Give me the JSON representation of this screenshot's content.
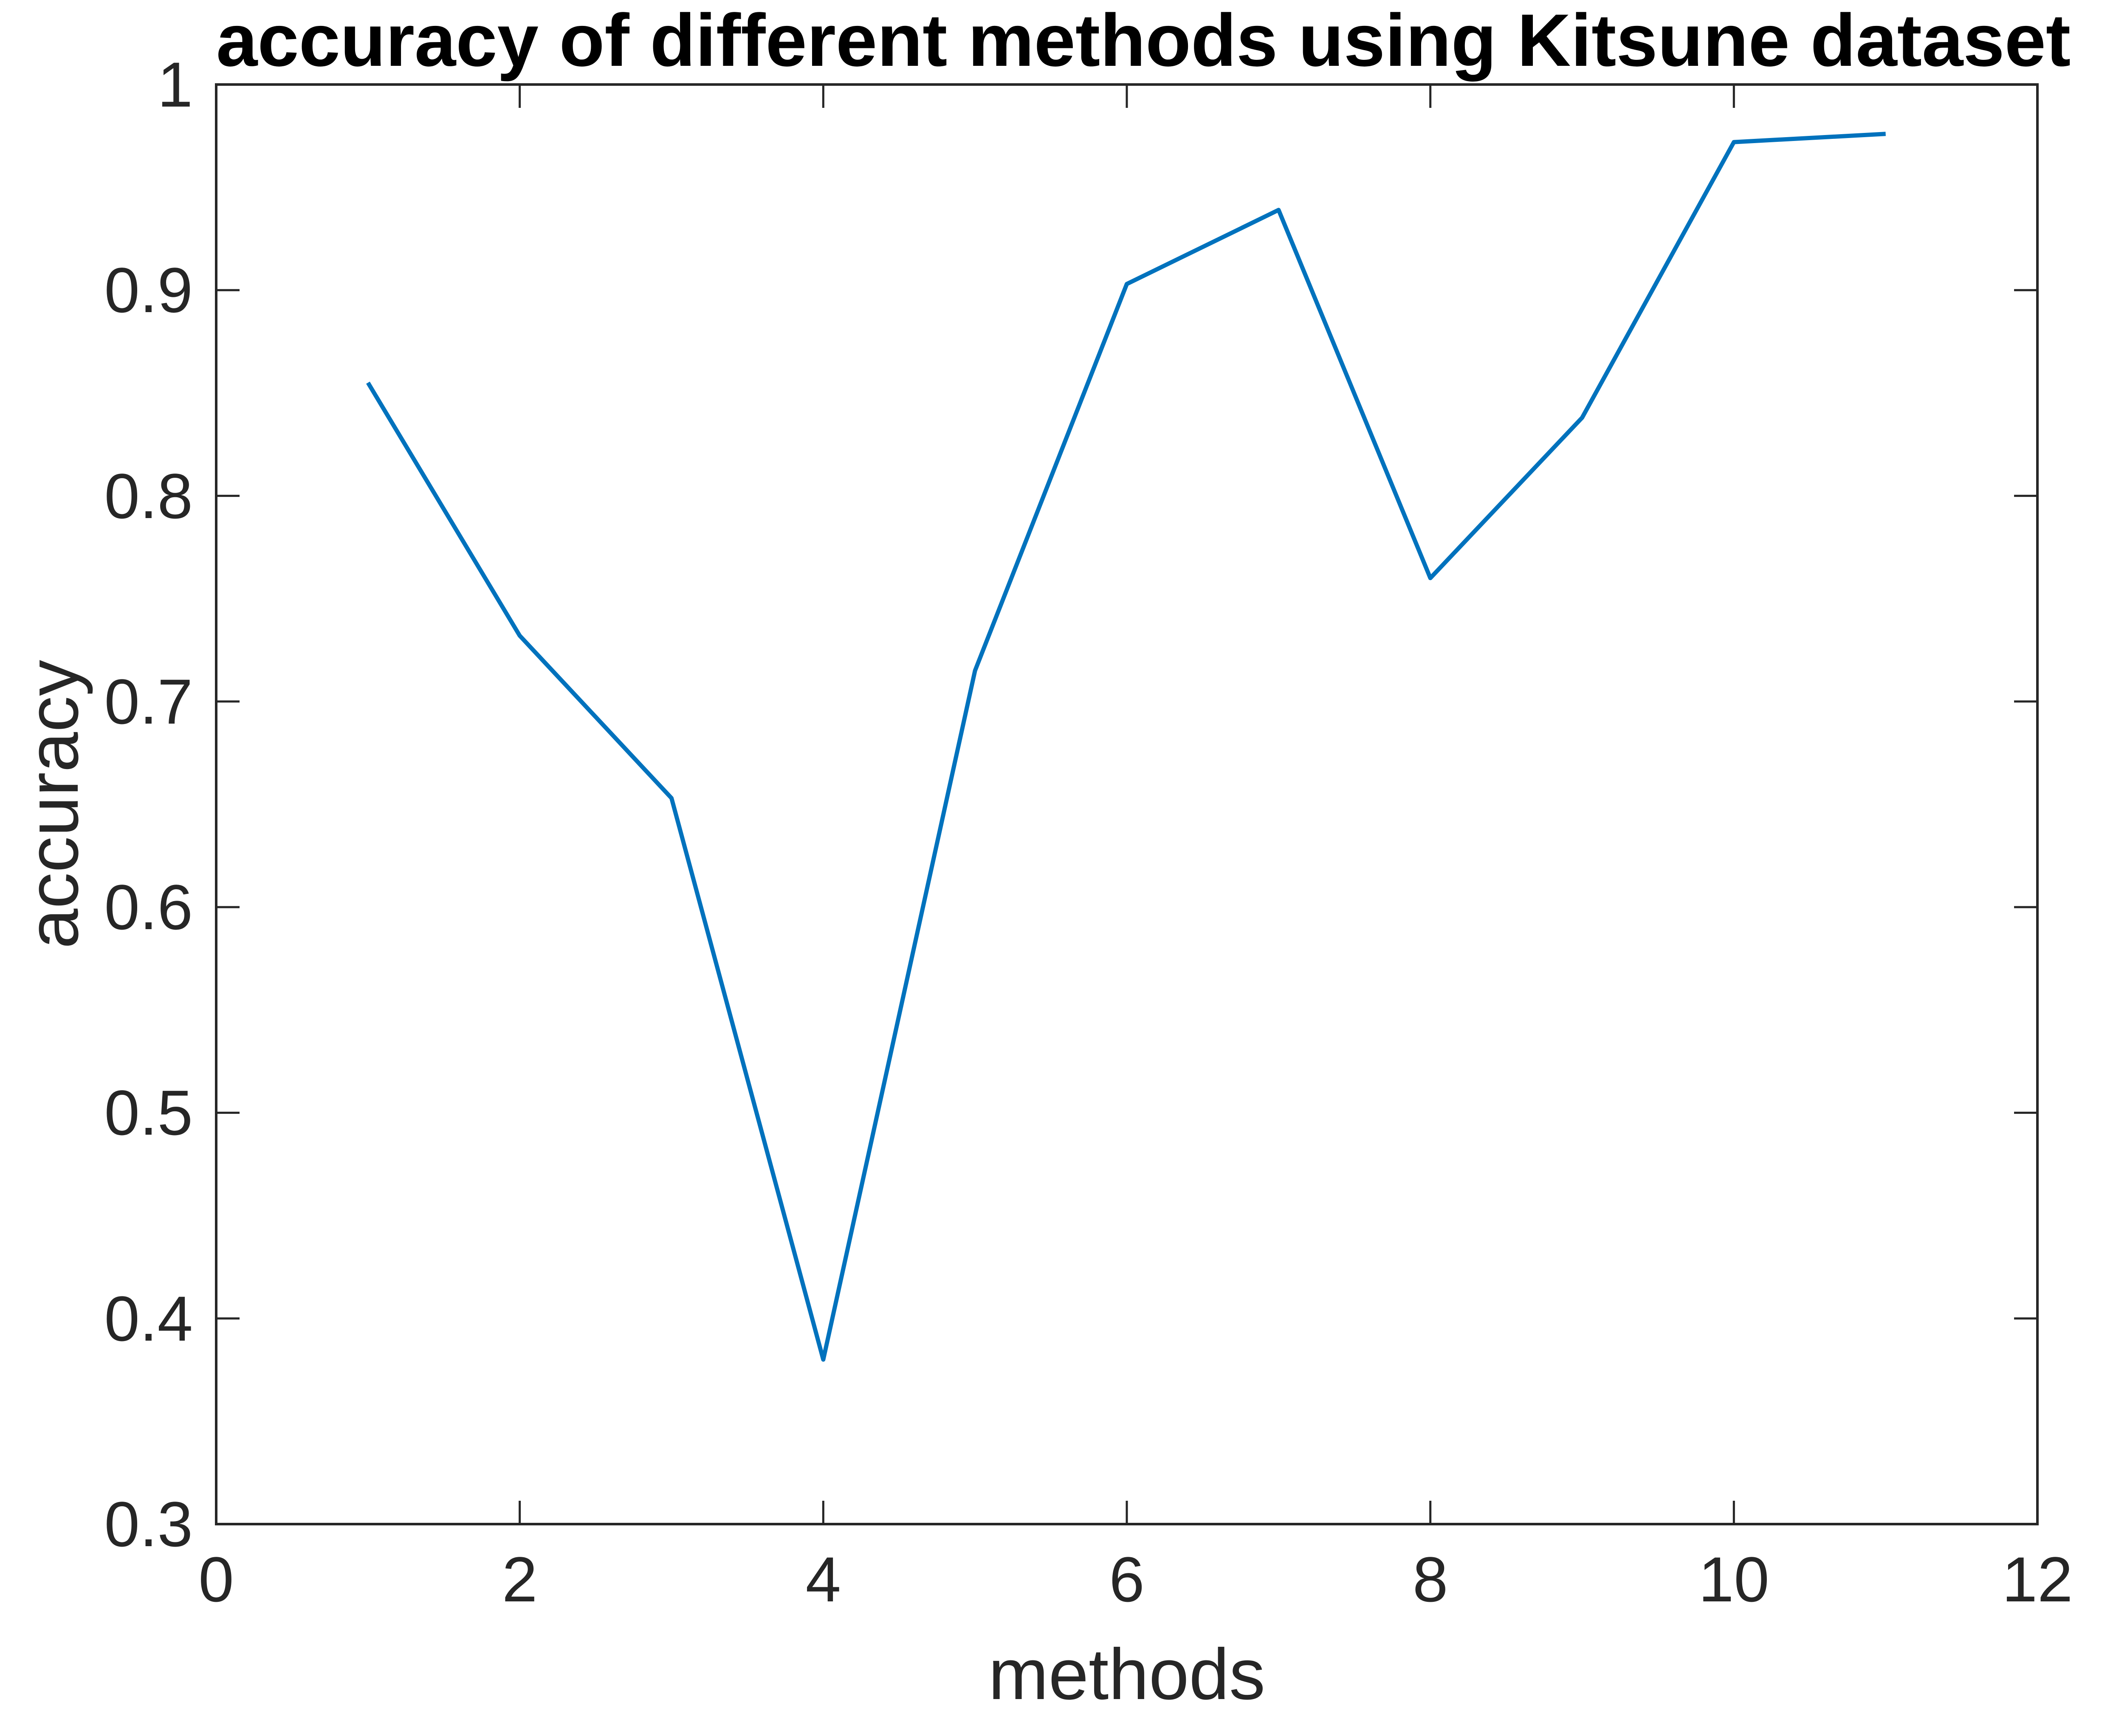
{
  "figure": {
    "background": "#ffffff"
  },
  "chart_data": {
    "type": "line",
    "title": "accuracy of different methods using Kitsune dataset",
    "xlabel": "methods",
    "ylabel": "accuracy",
    "x": [
      1,
      2,
      3,
      4,
      5,
      6,
      7,
      8,
      9,
      10,
      11
    ],
    "y": [
      0.855,
      0.732,
      0.653,
      0.38,
      0.715,
      0.903,
      0.939,
      0.76,
      0.838,
      0.972,
      0.976
    ],
    "series_name": "accuracy",
    "xlim": [
      0,
      12
    ],
    "ylim": [
      0.3,
      1
    ],
    "xticks": [
      0,
      2,
      4,
      6,
      8,
      10,
      12
    ],
    "yticks": [
      0.3,
      0.4,
      0.5,
      0.6,
      0.7,
      0.8,
      0.9,
      1
    ],
    "grid": false,
    "legend_position": "none",
    "marker": "none",
    "line_color": "#0072BD",
    "axis_color": "#262626",
    "title_color": "#000000",
    "tick_direction": "in",
    "box": true
  }
}
